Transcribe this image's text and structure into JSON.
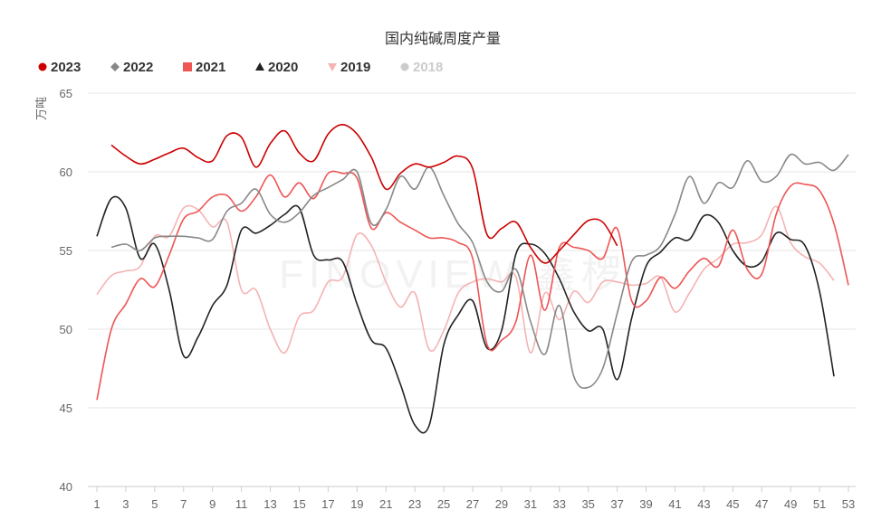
{
  "chart_data": {
    "type": "line",
    "title": "国内纯碱周度产量",
    "ylabel": "万吨",
    "xlabel": "",
    "xlim": [
      1,
      53
    ],
    "ylim": [
      40,
      65
    ],
    "yticks": [
      40,
      45,
      50,
      55,
      60,
      65
    ],
    "xticks": [
      1,
      3,
      5,
      7,
      9,
      11,
      13,
      15,
      17,
      19,
      21,
      23,
      25,
      27,
      29,
      31,
      33,
      35,
      37,
      39,
      41,
      43,
      45,
      47,
      49,
      51,
      53
    ],
    "grid": "horizontal",
    "legend_position": "top-left",
    "watermark": "FINOVIEW 鑫椤",
    "series": [
      {
        "name": "2023",
        "color": "#cc0000",
        "marker": "circle",
        "visible": true,
        "x": [
          2,
          3,
          4,
          5,
          6,
          7,
          8,
          9,
          10,
          11,
          12,
          13,
          14,
          15,
          16,
          17,
          18,
          19,
          20,
          21,
          22,
          23,
          24,
          25,
          26,
          27,
          28,
          29,
          30,
          31,
          32,
          33,
          34,
          35,
          36,
          37
        ],
        "y": [
          61.7,
          61.0,
          60.5,
          60.8,
          61.2,
          61.5,
          60.9,
          60.7,
          62.3,
          62.2,
          60.3,
          61.8,
          62.6,
          61.2,
          60.7,
          62.4,
          63.0,
          62.4,
          60.9,
          58.9,
          59.9,
          60.5,
          60.3,
          60.6,
          61.0,
          60.2,
          56.0,
          56.4,
          56.8,
          55.2,
          54.2,
          55.0,
          56.0,
          56.9,
          56.8,
          55.3
        ]
      },
      {
        "name": "2022",
        "color": "#888888",
        "marker": "diamond",
        "visible": true,
        "x": [
          2,
          3,
          4,
          5,
          6,
          7,
          8,
          9,
          10,
          11,
          12,
          13,
          14,
          15,
          16,
          17,
          18,
          19,
          20,
          21,
          22,
          23,
          24,
          25,
          26,
          27,
          28,
          29,
          30,
          31,
          32,
          33,
          34,
          35,
          36,
          37,
          38,
          39,
          40,
          41,
          42,
          43,
          44,
          45,
          46,
          47,
          48,
          49,
          50,
          51,
          52,
          53
        ],
        "y": [
          55.2,
          55.4,
          55.0,
          55.8,
          55.9,
          55.9,
          55.8,
          55.7,
          57.5,
          58.0,
          58.9,
          57.3,
          56.8,
          57.4,
          58.5,
          59.0,
          59.5,
          60.0,
          56.7,
          57.6,
          59.7,
          58.9,
          60.3,
          58.5,
          56.7,
          55.5,
          53.0,
          52.4,
          53.8,
          50.5,
          48.4,
          51.5,
          47.0,
          46.3,
          47.5,
          51.0,
          54.3,
          54.7,
          55.3,
          57.3,
          59.7,
          58.0,
          59.3,
          59.0,
          60.7,
          59.4,
          59.7,
          61.1,
          60.5,
          60.6,
          60.1,
          61.1
        ]
      },
      {
        "name": "2021",
        "color": "#ee5555",
        "marker": "square",
        "visible": true,
        "x": [
          1,
          2,
          3,
          4,
          5,
          6,
          7,
          8,
          9,
          10,
          11,
          12,
          13,
          14,
          15,
          16,
          17,
          18,
          19,
          20,
          21,
          22,
          23,
          24,
          25,
          26,
          27,
          28,
          29,
          30,
          31,
          32,
          33,
          34,
          35,
          36,
          37,
          38,
          39,
          40,
          41,
          42,
          43,
          44,
          45,
          46,
          47,
          48,
          49,
          50,
          51,
          52,
          53
        ],
        "y": [
          45.5,
          50.0,
          51.6,
          53.2,
          52.7,
          54.7,
          57.0,
          57.5,
          58.4,
          58.5,
          57.5,
          58.4,
          59.8,
          58.4,
          59.3,
          58.3,
          59.9,
          59.9,
          59.6,
          56.4,
          57.4,
          56.8,
          56.3,
          55.8,
          55.8,
          55.5,
          54.5,
          49.0,
          49.3,
          50.5,
          54.7,
          51.2,
          55.2,
          55.2,
          55.0,
          54.5,
          56.4,
          51.8,
          51.8,
          53.3,
          52.6,
          53.7,
          54.5,
          54.0,
          56.3,
          53.8,
          53.5,
          57.3,
          59.1,
          59.2,
          58.8,
          56.7,
          52.8
        ]
      },
      {
        "name": "2020",
        "color": "#222222",
        "marker": "triangle",
        "visible": true,
        "x": [
          1,
          2,
          3,
          4,
          5,
          6,
          7,
          8,
          9,
          10,
          11,
          12,
          13,
          14,
          15,
          16,
          17,
          18,
          19,
          20,
          21,
          22,
          23,
          24,
          25,
          26,
          27,
          28,
          29,
          30,
          31,
          32,
          33,
          34,
          35,
          36,
          37,
          38,
          39,
          40,
          41,
          42,
          43,
          44,
          45,
          46,
          47,
          48,
          49,
          50,
          51,
          52
        ],
        "y": [
          55.9,
          58.3,
          57.7,
          54.5,
          55.4,
          52.5,
          48.3,
          49.5,
          51.5,
          52.8,
          56.3,
          56.1,
          56.6,
          57.3,
          57.7,
          54.7,
          54.4,
          54.3,
          51.6,
          49.3,
          48.8,
          46.5,
          43.9,
          43.9,
          49.0,
          50.9,
          51.8,
          48.8,
          49.9,
          54.8,
          55.4,
          54.8,
          53.2,
          51.1,
          49.9,
          50.0,
          46.8,
          50.7,
          54.0,
          54.9,
          55.8,
          55.7,
          57.2,
          56.8,
          55.0,
          54.0,
          54.3,
          56.1,
          55.7,
          55.3,
          52.4,
          47.0
        ]
      },
      {
        "name": "2019",
        "color": "#f5b3b3",
        "marker": "heart",
        "visible": true,
        "x": [
          1,
          2,
          3,
          4,
          5,
          6,
          7,
          8,
          9,
          10,
          11,
          12,
          13,
          14,
          15,
          16,
          17,
          18,
          19,
          20,
          21,
          22,
          23,
          24,
          25,
          26,
          27,
          28,
          29,
          30,
          31,
          32,
          33,
          34,
          35,
          36,
          37,
          38,
          39,
          40,
          41,
          42,
          43,
          44,
          45,
          46,
          47,
          48,
          49,
          50,
          51,
          52
        ],
        "y": [
          52.2,
          53.4,
          53.7,
          54.0,
          55.9,
          55.9,
          57.7,
          57.6,
          56.5,
          56.8,
          52.5,
          52.5,
          50.0,
          48.5,
          50.8,
          51.2,
          53.0,
          53.3,
          56.0,
          55.3,
          53.0,
          51.4,
          52.3,
          48.7,
          49.9,
          52.3,
          53.0,
          53.2,
          53.0,
          53.3,
          48.5,
          52.3,
          50.6,
          52.4,
          51.7,
          53.0,
          53.0,
          52.8,
          52.9,
          53.3,
          51.1,
          52.3,
          53.8,
          54.5,
          55.4,
          55.5,
          56.0,
          57.8,
          55.5,
          54.6,
          54.2,
          53.1
        ]
      },
      {
        "name": "2018",
        "color": "#cccccc",
        "marker": "circle",
        "visible": false,
        "x": [],
        "y": []
      }
    ]
  }
}
